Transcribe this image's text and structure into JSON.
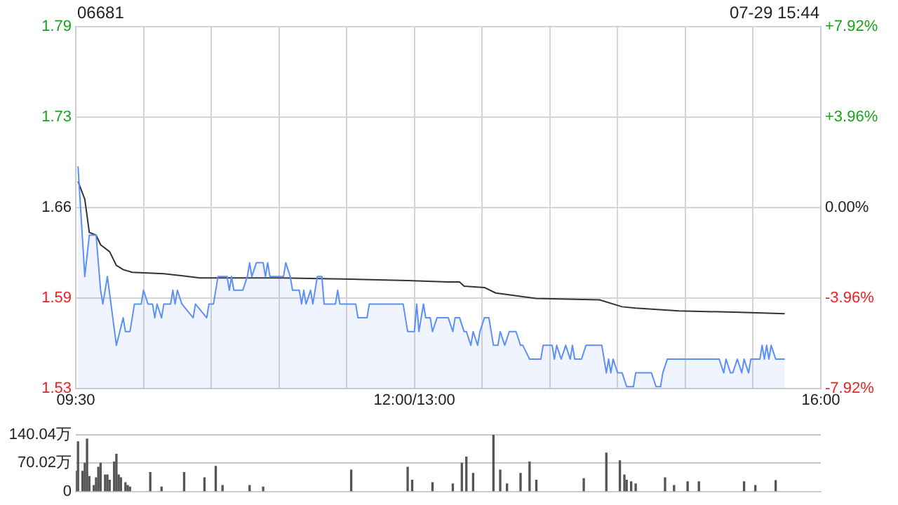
{
  "chart_data": [
    {
      "type": "line",
      "title": "06681",
      "annotations": [
        "07-29 15:44"
      ],
      "categories": [
        "09:30",
        null,
        null,
        null,
        null,
        null,
        null,
        null,
        null,
        null,
        null,
        null,
        null,
        null,
        null,
        null,
        null,
        null,
        null,
        null,
        null,
        null,
        null,
        null,
        null,
        null,
        null,
        null,
        null,
        null,
        null,
        null,
        null,
        null,
        null,
        null,
        null,
        null,
        null,
        null,
        null,
        null,
        null,
        null,
        null,
        null,
        null,
        null,
        null,
        null,
        null,
        null,
        null,
        null,
        null,
        null,
        null,
        null,
        null,
        null,
        null,
        null,
        null,
        null,
        null,
        null,
        null,
        null,
        null,
        null,
        null,
        null,
        null,
        null,
        null,
        null,
        null,
        null,
        null,
        null,
        null,
        null,
        null,
        null,
        null,
        null,
        null,
        null,
        null,
        null,
        null,
        null,
        null,
        null,
        null,
        null,
        null,
        null,
        null,
        null,
        null,
        null,
        null,
        null,
        null,
        null,
        null,
        null,
        null,
        null,
        null,
        null,
        null,
        null,
        null,
        null,
        null,
        null,
        null,
        null,
        null,
        null,
        null,
        null,
        null,
        null,
        null,
        null,
        null,
        null,
        null,
        null,
        null,
        null,
        null,
        null,
        null,
        null,
        null,
        null,
        null,
        null,
        null,
        null,
        null,
        null,
        null,
        null,
        null,
        null,
        "12:00/13:00",
        null,
        null,
        null,
        null,
        null,
        null,
        null,
        null,
        null,
        null,
        null,
        null,
        null,
        null,
        null,
        null,
        null,
        null,
        null,
        null,
        null,
        null,
        null,
        null,
        null,
        null,
        null,
        null,
        null,
        null,
        null,
        null,
        null,
        null,
        null,
        null,
        null,
        null,
        null,
        null,
        null,
        null,
        null,
        null,
        null,
        null,
        null,
        null,
        null,
        null,
        null,
        null,
        null,
        null,
        null,
        null,
        null,
        null,
        null,
        null,
        null,
        null,
        null,
        null,
        null,
        null,
        null,
        null,
        null,
        null,
        null,
        null,
        null,
        null,
        null,
        null,
        null,
        null,
        null,
        null,
        null,
        null,
        null,
        null,
        null,
        null,
        null,
        null,
        null,
        null,
        null,
        null,
        null,
        null,
        null,
        null,
        null,
        null,
        null,
        null,
        null,
        null,
        null,
        null,
        null,
        null,
        null,
        null,
        null,
        null,
        null,
        null,
        null,
        null,
        null,
        null,
        null,
        null,
        null,
        null,
        null,
        null,
        null,
        null,
        null,
        null,
        null,
        null,
        null,
        null,
        null,
        null,
        null,
        null,
        null,
        null,
        null,
        null,
        null,
        null,
        null,
        null,
        null,
        null,
        null,
        null,
        null,
        null,
        null,
        null,
        null,
        null,
        null,
        null,
        null,
        null,
        null,
        null,
        null,
        null,
        null,
        null,
        null,
        null,
        null,
        null,
        null,
        null,
        null,
        null,
        null,
        null,
        null,
        null,
        null,
        null,
        null,
        null,
        null,
        "16:00"
      ],
      "ylim": [
        1.5286,
        1.7914
      ],
      "yticks": [
        {
          "value": 1.5286,
          "label": "1.53"
        },
        {
          "value": 1.5943,
          "label": "1.59"
        },
        1.66,
        {
          "value": 1.7257,
          "label": "1.73"
        },
        {
          "value": 1.7914,
          "label": "1.79"
        }
      ],
      "y2lim": [
        -7.92,
        7.92
      ],
      "y2ticks": [
        {
          "value": -7.92,
          "label": "-7.92%"
        },
        {
          "value": -3.96,
          "label": "-3.96%"
        },
        {
          "value": 0,
          "label": "0.00%"
        },
        {
          "value": 3.96,
          "label": "+3.96%"
        },
        {
          "value": 7.92,
          "label": "+7.92%"
        }
      ],
      "grid": true,
      "series": [
        {
          "type": "area",
          "color": "#5b8ff9",
          "values": [
            null,
            1.69,
            null,
            null,
            1.61,
            null,
            1.64,
            null,
            null,
            1.64,
            null,
            1.6,
            1.59,
            null,
            1.61,
            null,
            null,
            null,
            1.56,
            null,
            null,
            1.58,
            1.57,
            null,
            1.57,
            null,
            1.59,
            null,
            null,
            1.59,
            1.6,
            null,
            1.59,
            null,
            1.59,
            1.58,
            1.59,
            null,
            1.58,
            1.59,
            null,
            null,
            1.59,
            1.6,
            1.59,
            1.6,
            null,
            1.59,
            null,
            null,
            null,
            null,
            1.58,
            1.59,
            null,
            null,
            null,
            null,
            1.58,
            1.59,
            null,
            1.59,
            null,
            1.61,
            null,
            null,
            null,
            1.61,
            1.6,
            1.61,
            1.6,
            null,
            null,
            null,
            1.6,
            null,
            1.61,
            1.62,
            1.61,
            null,
            1.62,
            null,
            null,
            1.62,
            1.61,
            1.62,
            1.61,
            null,
            null,
            null,
            null,
            null,
            1.61,
            1.62,
            null,
            1.61,
            1.6,
            null,
            null,
            1.6,
            1.59,
            1.6,
            1.59,
            null,
            1.6,
            1.59,
            null,
            1.61,
            null,
            1.61,
            1.59,
            null,
            null,
            null,
            null,
            1.59,
            1.6,
            1.59,
            null,
            null,
            null,
            null,
            null,
            null,
            1.59,
            1.58,
            null,
            null,
            null,
            1.58,
            1.59,
            null,
            null,
            null,
            null,
            null,
            null,
            null,
            null,
            null,
            null,
            null,
            null,
            null,
            null,
            1.59,
            null,
            1.57,
            null,
            null,
            1.57,
            1.59,
            1.57,
            null,
            1.59,
            1.58,
            null,
            1.58,
            1.57,
            null,
            1.58,
            null,
            null,
            null,
            null,
            1.58,
            null,
            1.57,
            1.58,
            null,
            1.58,
            null,
            1.57,
            1.57,
            null,
            1.56,
            1.57,
            null,
            1.56,
            1.57,
            null,
            1.58,
            null,
            1.58,
            null,
            1.56,
            null,
            1.56,
            1.57,
            null,
            1.56,
            null,
            1.57,
            null,
            null,
            1.57,
            null,
            1.56,
            1.56,
            null,
            null,
            1.55,
            null,
            null,
            null,
            null,
            1.55,
            1.56,
            null,
            null,
            null,
            1.56,
            1.55,
            1.56,
            null,
            1.55,
            null,
            1.56,
            null,
            1.55,
            1.56,
            1.55,
            null,
            null,
            1.55,
            null,
            1.56,
            null,
            null,
            null,
            null,
            null,
            null,
            1.56,
            null,
            1.54,
            1.55,
            1.54,
            1.55,
            null,
            1.54,
            null,
            1.54,
            null,
            1.53,
            1.53,
            null,
            1.53,
            1.54,
            null,
            null,
            null,
            null,
            null,
            null,
            1.54,
            null,
            1.53,
            null,
            1.53,
            1.54,
            null,
            1.55,
            null,
            null,
            null,
            null,
            null,
            null,
            null,
            null,
            null,
            null,
            null,
            null,
            null,
            null,
            null,
            null,
            null,
            null,
            null,
            null,
            null,
            null,
            1.55,
            null,
            1.54,
            1.55,
            null,
            1.54,
            1.54,
            null,
            1.55,
            null,
            1.54,
            1.55,
            null,
            1.54,
            1.55,
            null,
            null,
            null,
            1.55,
            1.56,
            1.55,
            1.56,
            1.55,
            1.56,
            null,
            1.55,
            null,
            null,
            null,
            1.55,
            null,
            null,
            null,
            null,
            null,
            null,
            null,
            null,
            null,
            null,
            null,
            null,
            null,
            null,
            null,
            null
          ]
        },
        {
          "color": "#333333",
          "values": [
            null,
            1.679,
            null,
            null,
            1.666,
            null,
            1.642,
            null,
            null,
            1.64,
            null,
            1.633,
            null,
            null,
            null,
            1.628,
            null,
            null,
            1.618,
            null,
            null,
            1.615,
            null,
            null,
            null,
            1.613,
            null,
            null,
            null,
            null,
            null,
            null,
            null,
            null,
            null,
            null,
            null,
            null,
            null,
            1.612,
            null,
            null,
            null,
            null,
            null,
            null,
            null,
            null,
            null,
            null,
            null,
            null,
            null,
            null,
            null,
            1.609,
            null,
            null,
            null,
            null,
            null,
            null,
            null,
            null,
            null,
            null,
            null,
            null,
            null,
            null,
            null,
            null,
            null,
            null,
            null,
            null,
            null,
            null,
            null,
            null,
            null,
            null,
            null,
            null,
            null,
            null,
            null,
            null,
            null,
            null,
            null,
            1.609,
            null,
            null,
            null,
            null,
            null,
            null,
            null,
            null,
            null,
            null,
            null,
            null,
            null,
            null,
            null,
            null,
            null,
            null,
            null,
            null,
            null,
            null,
            null,
            null,
            null,
            null,
            null,
            null,
            null,
            null,
            1.608,
            null,
            null,
            null,
            null,
            null,
            null,
            null,
            null,
            null,
            null,
            null,
            null,
            null,
            null,
            null,
            null,
            null,
            null,
            null,
            null,
            null,
            null,
            null,
            null,
            1.607,
            null,
            null,
            null,
            null,
            null,
            null,
            null,
            null,
            null,
            null,
            null,
            null,
            null,
            null,
            null,
            null,
            null,
            1.606,
            null,
            null,
            null,
            null,
            1.606,
            null,
            1.603,
            null,
            null,
            null,
            null,
            null,
            null,
            null,
            null,
            1.602,
            null,
            null,
            null,
            null,
            1.598,
            null,
            null,
            null,
            null,
            null,
            null,
            null,
            null,
            null,
            null,
            null,
            null,
            null,
            null,
            null,
            null,
            null,
            1.594,
            null,
            null,
            null,
            null,
            null,
            null,
            null,
            null,
            null,
            null,
            null,
            null,
            null,
            null,
            null,
            null,
            null,
            null,
            null,
            null,
            null,
            null,
            null,
            null,
            null,
            null,
            null,
            1.593,
            null,
            null,
            null,
            null,
            null,
            null,
            null,
            null,
            null,
            1.588,
            null,
            null,
            null,
            null,
            null,
            1.587,
            null,
            null,
            null,
            null,
            null,
            null,
            null,
            null,
            null,
            null,
            null,
            null,
            null,
            null,
            null,
            null,
            null,
            null,
            1.585,
            null,
            null,
            null,
            null,
            null,
            null,
            null,
            null,
            null,
            null,
            null,
            null,
            null,
            null,
            null,
            null,
            null,
            null,
            null,
            null,
            null,
            null,
            null,
            null,
            null,
            null,
            1.584,
            null,
            null,
            null,
            null,
            null,
            null,
            null,
            null,
            null,
            null,
            null,
            null,
            null,
            null,
            null,
            null,
            null,
            null,
            null,
            1.583,
            null,
            null,
            null,
            null,
            null,
            null,
            null,
            null,
            null,
            null,
            null,
            null,
            null,
            null,
            null,
            null
          ]
        }
      ]
    },
    {
      "type": "bar",
      "categories": [
        null,
        null,
        null,
        null,
        null,
        null,
        null,
        null,
        null,
        null,
        null,
        null,
        null,
        null,
        null,
        null,
        null,
        null,
        null,
        null,
        null,
        null,
        null,
        null,
        null,
        null,
        null,
        null,
        null,
        null,
        null,
        null,
        null,
        null,
        null,
        null,
        null,
        null,
        null,
        null,
        null,
        null,
        null,
        null,
        null,
        null,
        null,
        null,
        null,
        null,
        null,
        null,
        null,
        null,
        null,
        null,
        null,
        null,
        null,
        null,
        null,
        null,
        null,
        null,
        null,
        null,
        null,
        null,
        null,
        null,
        null,
        null,
        null,
        null,
        null,
        null,
        null,
        null,
        null,
        null,
        null,
        null,
        null,
        null,
        null,
        null,
        null,
        null,
        null,
        null,
        null,
        null,
        null,
        null,
        null,
        null,
        null,
        null,
        null,
        null,
        null,
        null,
        null,
        null,
        null,
        null,
        null,
        null,
        null,
        null,
        null,
        null,
        null,
        null,
        null,
        null,
        null,
        null,
        null,
        null,
        null,
        null,
        null,
        null,
        null,
        null,
        null,
        null,
        null,
        null,
        null,
        null,
        null,
        null,
        null,
        null,
        null,
        null,
        null,
        null,
        null,
        null,
        null,
        null,
        null,
        null,
        null,
        null,
        null,
        null,
        null,
        null,
        null,
        null,
        null,
        null,
        null,
        null,
        null,
        null,
        null,
        null,
        null,
        null,
        null,
        null,
        null,
        null,
        null,
        null,
        null,
        null,
        null,
        null,
        null,
        null,
        null,
        null,
        null,
        null,
        null,
        null,
        null,
        null,
        null,
        null,
        null,
        null,
        null,
        null,
        null,
        null,
        null,
        null,
        null,
        null,
        null,
        null,
        null,
        null,
        null,
        null,
        null,
        null,
        null,
        null,
        null,
        null,
        null,
        null,
        null,
        null,
        null,
        null,
        null,
        null,
        null,
        null,
        null,
        null,
        null,
        null,
        null,
        null,
        null,
        null,
        null,
        null,
        null,
        null,
        null,
        null,
        null,
        null,
        null,
        null,
        null,
        null,
        null,
        null,
        null,
        null,
        null,
        null,
        null,
        null,
        null,
        null,
        null,
        null,
        null,
        null,
        null,
        null,
        null,
        null,
        null,
        null,
        null,
        null,
        null,
        null,
        null,
        null,
        null,
        null,
        null,
        null,
        null,
        null,
        null,
        null,
        null,
        null,
        null,
        null,
        null,
        null,
        null,
        null,
        null,
        null,
        null,
        null,
        null,
        null,
        null,
        null,
        null,
        null,
        null,
        null,
        null,
        null,
        null,
        null,
        null,
        null,
        null,
        null,
        null,
        null,
        null,
        null,
        null,
        null,
        null,
        null,
        null,
        null,
        null,
        null,
        null,
        null,
        null,
        null,
        null,
        null,
        null,
        null,
        null,
        null,
        null,
        null,
        null,
        null,
        null,
        null,
        null,
        null,
        null
      ],
      "ylim": [
        0,
        140.04
      ],
      "yticks": [
        0,
        {
          "value": 70.02,
          "label": "70.02万"
        },
        {
          "value": 140.04,
          "label": "140.04万"
        }
      ],
      "grid": "y",
      "tick_labels": "y",
      "color": "#555555",
      "values": [
        50,
        123,
        null,
        50,
        70,
        130,
        37,
        null,
        15,
        34,
        60,
        70,
        null,
        41,
        41,
        28,
        null,
        73,
        92,
        41,
        34,
        null,
        22,
        15,
        11,
        null,
        null,
        null,
        null,
        null,
        null,
        null,
        null,
        47,
        null,
        null,
        null,
        null,
        11,
        null,
        null,
        null,
        null,
        null,
        null,
        null,
        null,
        null,
        47,
        null,
        null,
        null,
        null,
        null,
        null,
        null,
        null,
        34,
        null,
        null,
        null,
        null,
        62,
        null,
        null,
        15,
        null,
        null,
        null,
        null,
        null,
        null,
        null,
        null,
        null,
        null,
        null,
        15,
        null,
        null,
        null,
        null,
        null,
        11,
        null,
        null,
        null,
        null,
        null,
        null,
        null,
        null,
        null,
        null,
        null,
        null,
        null,
        null,
        null,
        null,
        null,
        null,
        null,
        null,
        null,
        null,
        null,
        null,
        null,
        null,
        null,
        null,
        null,
        null,
        null,
        null,
        null,
        null,
        null,
        null,
        null,
        null,
        53,
        null,
        null,
        null,
        null,
        null,
        null,
        null,
        null,
        null,
        null,
        null,
        null,
        null,
        null,
        null,
        null,
        null,
        null,
        null,
        null,
        null,
        null,
        null,
        null,
        60,
        null,
        28,
        null,
        null,
        null,
        null,
        null,
        null,
        null,
        null,
        22,
        null,
        null,
        null,
        null,
        null,
        null,
        null,
        null,
        19,
        null,
        null,
        null,
        70,
        null,
        85,
        null,
        null,
        45,
        null,
        null,
        null,
        null,
        null,
        null,
        null,
        null,
        140,
        null,
        null,
        53,
        null,
        null,
        19,
        null,
        null,
        null,
        null,
        null,
        45,
        null,
        null,
        null,
        73,
        null,
        null,
        28,
        null,
        null,
        null,
        null,
        null,
        null,
        null,
        null,
        null,
        null,
        null,
        null,
        null,
        null,
        null,
        null,
        null,
        null,
        null,
        null,
        32,
        null,
        null,
        null,
        null,
        null,
        null,
        null,
        null,
        null,
        95,
        null,
        null,
        null,
        null,
        null,
        76,
        null,
        41,
        28,
        null,
        24,
        null,
        19,
        null,
        null,
        null,
        null,
        null,
        null,
        null,
        null,
        null,
        null,
        null,
        null,
        34,
        null,
        null,
        null,
        15,
        null,
        null,
        null,
        null,
        null,
        24,
        null,
        null,
        null,
        null,
        24,
        null,
        null,
        null,
        null,
        null,
        null,
        null,
        null,
        null,
        null,
        null,
        null,
        null,
        null,
        null,
        null,
        null,
        null,
        null,
        24,
        null,
        null,
        null,
        null,
        15,
        null,
        null,
        null,
        null,
        null,
        null,
        null,
        null,
        27,
        null,
        null,
        null,
        null,
        null,
        null,
        null,
        null,
        null,
        null,
        null,
        null,
        null,
        null,
        null,
        null,
        null,
        null,
        null,
        null
      ]
    }
  ]
}
